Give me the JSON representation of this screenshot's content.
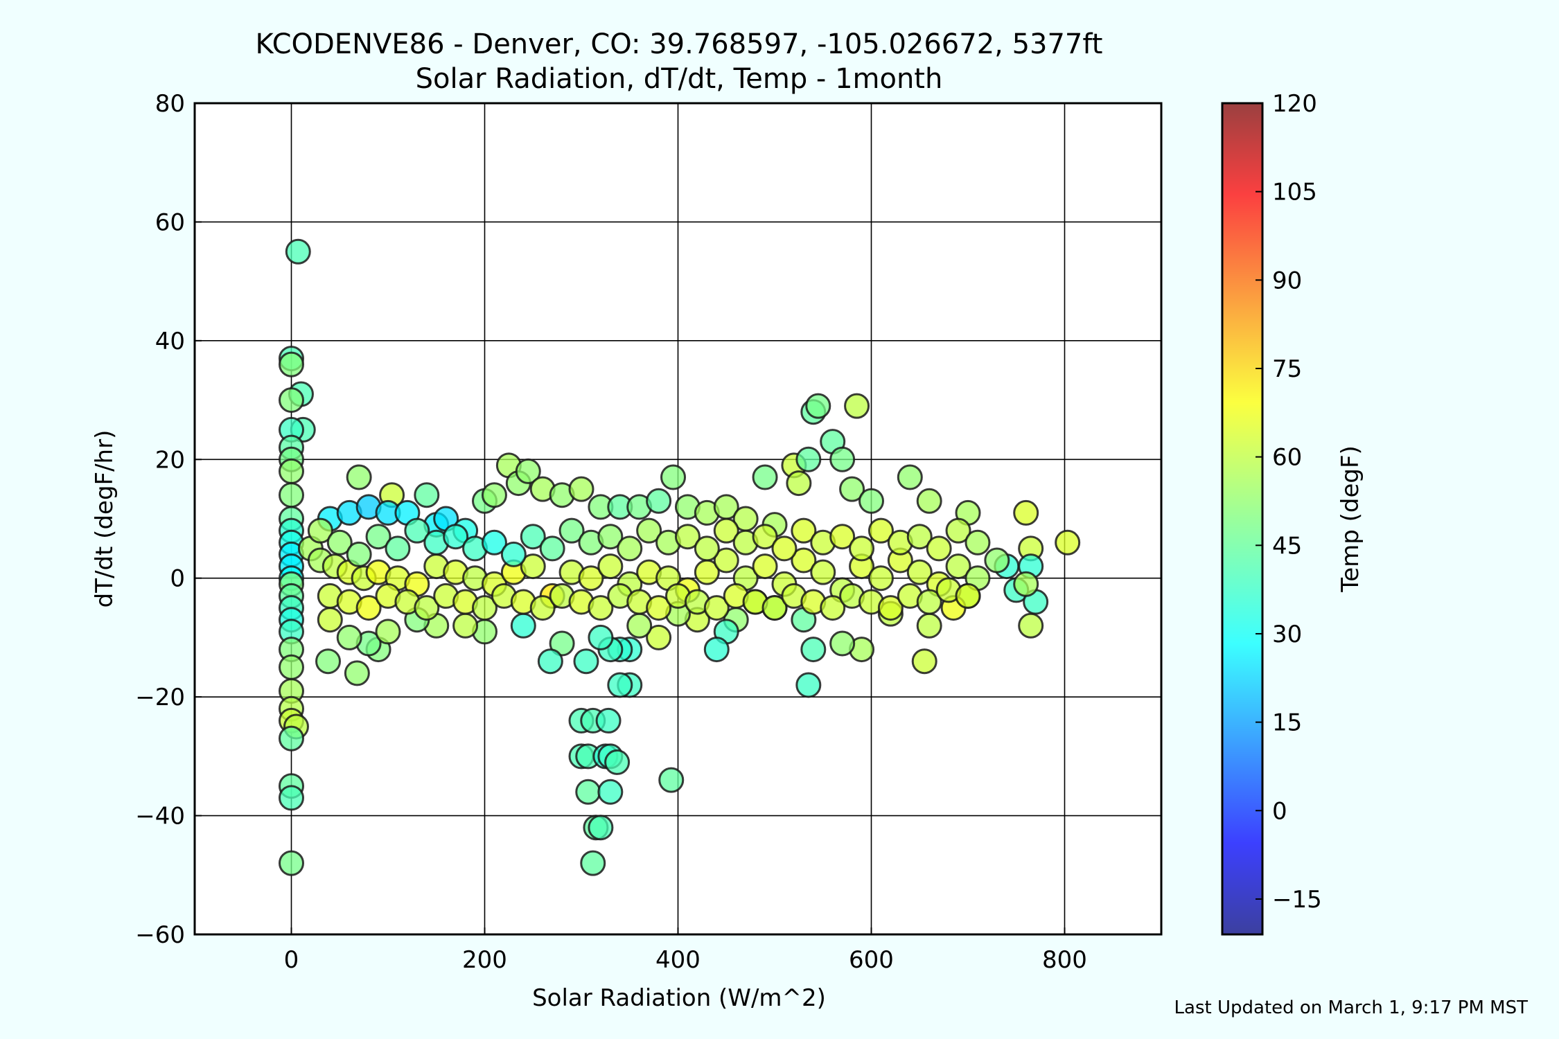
{
  "chart_data": {
    "type": "scatter",
    "title": "KCODENVE86 - Denver, CO: 39.768597, -105.026672, 5377ft",
    "subtitle": "Solar Radiation, dT/dt, Temp - 1month",
    "xlabel": "Solar Radiation (W/m^2)",
    "ylabel": "dT/dt (degF/hr)",
    "xlim": [
      -100,
      900
    ],
    "ylim": [
      -60,
      80
    ],
    "x_ticks": [
      0,
      200,
      400,
      600,
      800
    ],
    "x_tick_labels": [
      "0",
      "200",
      "400",
      "600",
      "800"
    ],
    "y_ticks": [
      -60,
      -40,
      -20,
      0,
      20,
      40,
      60,
      80
    ],
    "y_tick_labels": [
      "−60",
      "−40",
      "−20",
      "0",
      "20",
      "40",
      "60",
      "80"
    ],
    "grid": true,
    "colorbar": {
      "label": "Temp (degF)",
      "range": [
        -21,
        120
      ],
      "ticks": [
        -15,
        0,
        15,
        30,
        45,
        60,
        75,
        90,
        105,
        120
      ],
      "tick_labels": [
        "−15",
        "0",
        "15",
        "30",
        "45",
        "60",
        "75",
        "90",
        "105",
        "120"
      ],
      "colormap": "jet"
    },
    "points": [
      [
        7,
        55,
        42
      ],
      [
        0,
        37,
        42
      ],
      [
        0,
        36,
        50
      ],
      [
        10,
        31,
        42
      ],
      [
        0,
        30,
        50
      ],
      [
        12,
        25,
        42
      ],
      [
        0,
        25,
        40
      ],
      [
        0,
        22,
        44
      ],
      [
        0,
        20,
        48
      ],
      [
        0,
        18,
        52
      ],
      [
        0,
        14,
        50
      ],
      [
        0,
        10,
        45
      ],
      [
        0,
        8,
        38
      ],
      [
        0,
        6,
        35
      ],
      [
        0,
        4,
        30
      ],
      [
        0,
        2,
        30
      ],
      [
        0,
        0,
        32
      ],
      [
        0,
        -1,
        50
      ],
      [
        0,
        -3,
        45
      ],
      [
        0,
        -5,
        40
      ],
      [
        0,
        -7,
        36
      ],
      [
        0,
        -9,
        40
      ],
      [
        0,
        -12,
        50
      ],
      [
        0,
        -15,
        52
      ],
      [
        0,
        -19,
        55
      ],
      [
        0,
        -22,
        57
      ],
      [
        0,
        -24,
        60
      ],
      [
        5,
        -25,
        58
      ],
      [
        0,
        -27,
        45
      ],
      [
        0,
        -35,
        45
      ],
      [
        0,
        -37,
        42
      ],
      [
        0,
        -48,
        48
      ],
      [
        68,
        -16,
        52
      ],
      [
        38,
        -14,
        50
      ],
      [
        90,
        -12,
        50
      ],
      [
        80,
        -11,
        48
      ],
      [
        104,
        14,
        60
      ],
      [
        70,
        17,
        52
      ],
      [
        40,
        10,
        30
      ],
      [
        60,
        11,
        28
      ],
      [
        80,
        12,
        25
      ],
      [
        100,
        11,
        28
      ],
      [
        120,
        11,
        30
      ],
      [
        140,
        14,
        45
      ],
      [
        150,
        9,
        30
      ],
      [
        160,
        10,
        28
      ],
      [
        180,
        8,
        35
      ],
      [
        200,
        13,
        48
      ],
      [
        210,
        14,
        52
      ],
      [
        225,
        19,
        55
      ],
      [
        235,
        16,
        52
      ],
      [
        245,
        18,
        52
      ],
      [
        260,
        15,
        55
      ],
      [
        280,
        14,
        52
      ],
      [
        300,
        15,
        55
      ],
      [
        320,
        12,
        50
      ],
      [
        340,
        12,
        45
      ],
      [
        360,
        12,
        48
      ],
      [
        380,
        13,
        45
      ],
      [
        395,
        17,
        50
      ],
      [
        410,
        12,
        52
      ],
      [
        430,
        11,
        55
      ],
      [
        450,
        12,
        55
      ],
      [
        470,
        10,
        57
      ],
      [
        490,
        17,
        48
      ],
      [
        500,
        9,
        55
      ],
      [
        520,
        19,
        60
      ],
      [
        525,
        16,
        58
      ],
      [
        535,
        20,
        45
      ],
      [
        540,
        28,
        45
      ],
      [
        545,
        29,
        48
      ],
      [
        560,
        23,
        45
      ],
      [
        570,
        20,
        48
      ],
      [
        585,
        29,
        58
      ],
      [
        580,
        15,
        52
      ],
      [
        600,
        13,
        50
      ],
      [
        640,
        17,
        52
      ],
      [
        660,
        13,
        55
      ],
      [
        700,
        11,
        55
      ],
      [
        760,
        11,
        62
      ],
      [
        803,
        6,
        62
      ],
      [
        765,
        5,
        60
      ],
      [
        740,
        2,
        38
      ],
      [
        765,
        2,
        38
      ],
      [
        750,
        -2,
        40
      ],
      [
        770,
        -4,
        40
      ],
      [
        760,
        -1,
        55
      ],
      [
        765,
        -8,
        58
      ],
      [
        700,
        -3,
        55
      ],
      [
        685,
        -5,
        65
      ],
      [
        660,
        -8,
        58
      ],
      [
        655,
        -14,
        60
      ],
      [
        620,
        -6,
        58
      ],
      [
        590,
        -12,
        55
      ],
      [
        570,
        -11,
        52
      ],
      [
        540,
        -12,
        42
      ],
      [
        535,
        -18,
        40
      ],
      [
        530,
        -7,
        45
      ],
      [
        500,
        -5,
        58
      ],
      [
        480,
        -4,
        60
      ],
      [
        460,
        -7,
        52
      ],
      [
        450,
        -9,
        40
      ],
      [
        440,
        -12,
        38
      ],
      [
        420,
        -7,
        60
      ],
      [
        400,
        -6,
        55
      ],
      [
        380,
        -10,
        60
      ],
      [
        360,
        -8,
        55
      ],
      [
        350,
        -12,
        38
      ],
      [
        340,
        -12,
        38
      ],
      [
        330,
        -12,
        40
      ],
      [
        320,
        -10,
        40
      ],
      [
        305,
        -14,
        40
      ],
      [
        280,
        -11,
        48
      ],
      [
        268,
        -14,
        40
      ],
      [
        240,
        -8,
        38
      ],
      [
        200,
        -9,
        52
      ],
      [
        180,
        -8,
        58
      ],
      [
        150,
        -8,
        55
      ],
      [
        130,
        -7,
        50
      ],
      [
        100,
        -9,
        55
      ],
      [
        60,
        -10,
        52
      ],
      [
        40,
        -7,
        60
      ],
      [
        350,
        -18,
        40
      ],
      [
        340,
        -18,
        40
      ],
      [
        300,
        -24,
        42
      ],
      [
        312,
        -24,
        42
      ],
      [
        328,
        -24,
        40
      ],
      [
        300,
        -30,
        42
      ],
      [
        307,
        -30,
        42
      ],
      [
        325,
        -30,
        38
      ],
      [
        330,
        -30,
        40
      ],
      [
        337,
        -31,
        42
      ],
      [
        307,
        -36,
        45
      ],
      [
        330,
        -36,
        40
      ],
      [
        315,
        -42,
        45
      ],
      [
        320,
        -42,
        42
      ],
      [
        312,
        -48,
        45
      ],
      [
        393,
        -34,
        45
      ],
      [
        20,
        5,
        55
      ],
      [
        30,
        3,
        55
      ],
      [
        45,
        2,
        58
      ],
      [
        60,
        1,
        62
      ],
      [
        75,
        0,
        60
      ],
      [
        90,
        1,
        65
      ],
      [
        110,
        0,
        62
      ],
      [
        130,
        -1,
        65
      ],
      [
        150,
        2,
        60
      ],
      [
        170,
        1,
        62
      ],
      [
        190,
        0,
        58
      ],
      [
        210,
        -1,
        62
      ],
      [
        230,
        1,
        65
      ],
      [
        250,
        2,
        60
      ],
      [
        270,
        -3,
        70
      ],
      [
        290,
        1,
        60
      ],
      [
        310,
        0,
        62
      ],
      [
        330,
        2,
        60
      ],
      [
        350,
        -1,
        58
      ],
      [
        370,
        1,
        62
      ],
      [
        390,
        0,
        60
      ],
      [
        410,
        -2,
        65
      ],
      [
        430,
        1,
        62
      ],
      [
        450,
        3,
        60
      ],
      [
        470,
        0,
        58
      ],
      [
        490,
        2,
        62
      ],
      [
        510,
        -1,
        60
      ],
      [
        530,
        3,
        62
      ],
      [
        550,
        1,
        60
      ],
      [
        570,
        -2,
        58
      ],
      [
        590,
        2,
        62
      ],
      [
        610,
        0,
        60
      ],
      [
        630,
        3,
        62
      ],
      [
        650,
        1,
        60
      ],
      [
        670,
        -1,
        62
      ],
      [
        690,
        2,
        58
      ],
      [
        710,
        0,
        55
      ],
      [
        30,
        8,
        55
      ],
      [
        50,
        6,
        52
      ],
      [
        70,
        4,
        50
      ],
      [
        90,
        7,
        48
      ],
      [
        110,
        5,
        45
      ],
      [
        130,
        8,
        42
      ],
      [
        150,
        6,
        40
      ],
      [
        170,
        7,
        38
      ],
      [
        190,
        5,
        40
      ],
      [
        210,
        6,
        35
      ],
      [
        230,
        4,
        38
      ],
      [
        250,
        7,
        42
      ],
      [
        270,
        5,
        45
      ],
      [
        290,
        8,
        48
      ],
      [
        310,
        6,
        50
      ],
      [
        330,
        7,
        52
      ],
      [
        350,
        5,
        55
      ],
      [
        370,
        8,
        55
      ],
      [
        390,
        6,
        55
      ],
      [
        410,
        7,
        58
      ],
      [
        430,
        5,
        58
      ],
      [
        450,
        8,
        60
      ],
      [
        470,
        6,
        58
      ],
      [
        490,
        7,
        60
      ],
      [
        510,
        5,
        62
      ],
      [
        530,
        8,
        62
      ],
      [
        550,
        6,
        60
      ],
      [
        570,
        7,
        62
      ],
      [
        590,
        5,
        60
      ],
      [
        610,
        8,
        62
      ],
      [
        630,
        6,
        60
      ],
      [
        650,
        7,
        58
      ],
      [
        670,
        5,
        60
      ],
      [
        690,
        8,
        58
      ],
      [
        710,
        6,
        55
      ],
      [
        730,
        3,
        52
      ],
      [
        40,
        -3,
        60
      ],
      [
        60,
        -4,
        62
      ],
      [
        80,
        -5,
        65
      ],
      [
        100,
        -3,
        62
      ],
      [
        120,
        -4,
        60
      ],
      [
        140,
        -5,
        58
      ],
      [
        160,
        -3,
        60
      ],
      [
        180,
        -4,
        62
      ],
      [
        200,
        -5,
        58
      ],
      [
        220,
        -3,
        60
      ],
      [
        240,
        -4,
        62
      ],
      [
        260,
        -5,
        60
      ],
      [
        280,
        -3,
        58
      ],
      [
        300,
        -4,
        62
      ],
      [
        320,
        -5,
        60
      ],
      [
        340,
        -3,
        58
      ],
      [
        360,
        -4,
        60
      ],
      [
        380,
        -5,
        62
      ],
      [
        400,
        -3,
        60
      ],
      [
        420,
        -4,
        58
      ],
      [
        440,
        -5,
        60
      ],
      [
        460,
        -3,
        62
      ],
      [
        480,
        -4,
        60
      ],
      [
        500,
        -5,
        58
      ],
      [
        520,
        -3,
        60
      ],
      [
        540,
        -4,
        62
      ],
      [
        560,
        -5,
        60
      ],
      [
        580,
        -3,
        58
      ],
      [
        600,
        -4,
        60
      ],
      [
        620,
        -5,
        62
      ],
      [
        640,
        -3,
        60
      ],
      [
        660,
        -4,
        58
      ],
      [
        680,
        -2,
        60
      ],
      [
        700,
        -3,
        62
      ]
    ]
  },
  "footer": {
    "last_updated": "Last Updated on March 1, 9:17 PM MST"
  }
}
